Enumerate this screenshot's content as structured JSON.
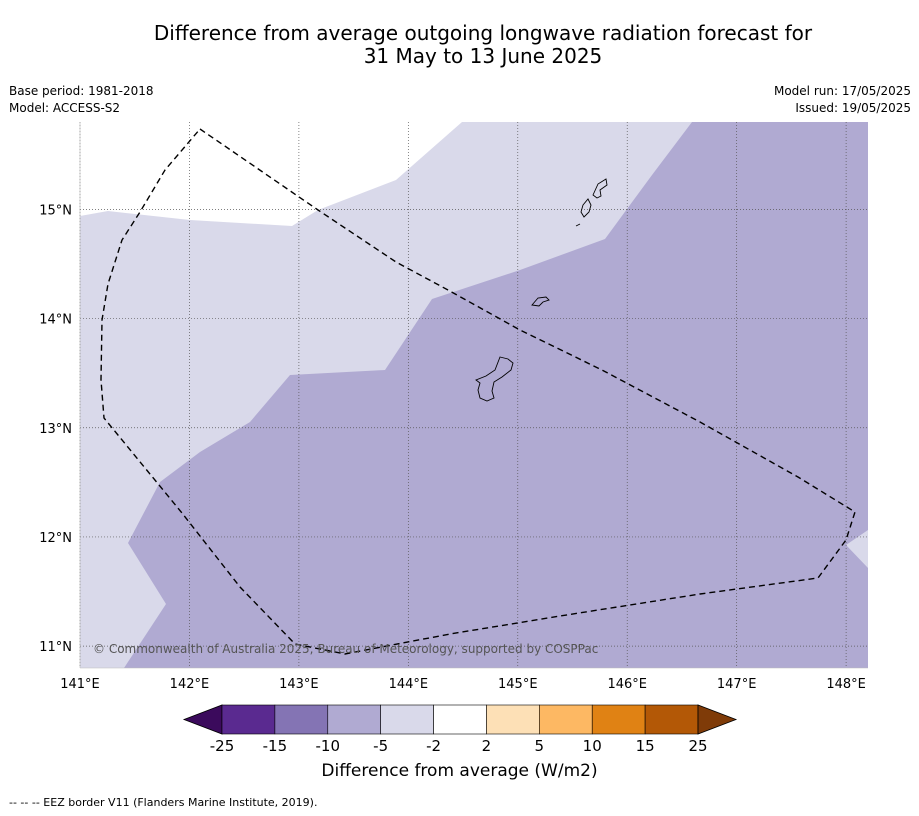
{
  "title_line1": "Difference from average outgoing longwave radiation forecast for",
  "title_line2": "31 May to 13 June 2025",
  "base_period": "Base period: 1981-2018",
  "model": "Model: ACCESS-S2",
  "model_run": "Model run: 17/05/2025",
  "issued": "Issued: 19/05/2025",
  "copyright": "© Commonwealth of Australia 2025, Bureau of Meteorology, supported by COSPPac",
  "footer_legend": "--  --  -- EEZ border V11 (Flanders Marine Institute, 2019).",
  "colorbar_title": "Difference from average (W/m2)",
  "map": {
    "lon_range": [
      141,
      148.2
    ],
    "lat_range": [
      10.8,
      15.8
    ],
    "lon_ticks": [
      "141°E",
      "142°E",
      "143°E",
      "144°E",
      "145°E",
      "146°E",
      "147°E",
      "148°E"
    ],
    "lat_ticks": [
      "11°N",
      "12°N",
      "13°N",
      "14°N",
      "15°N"
    ],
    "lon_tick_values": [
      141,
      142,
      143,
      144,
      145,
      146,
      147,
      148
    ],
    "lat_tick_values": [
      11,
      12,
      13,
      14,
      15
    ],
    "grid": true
  },
  "colorbar": {
    "labels": [
      "-25",
      "-15",
      "-10",
      "-5",
      "-2",
      "2",
      "5",
      "10",
      "15",
      "25"
    ],
    "colors": [
      "#3b0a5c",
      "#5a2a90",
      "#8474b4",
      "#b0aad2",
      "#d9d9ea",
      "#ffffff",
      "#fde0b6",
      "#fdb863",
      "#e08214",
      "#b35806",
      "#7f3b08"
    ]
  },
  "colors": {
    "light_lavender": "#d9d9ea",
    "mid_lavender": "#b0aad2",
    "white": "#ffffff",
    "grid": "#555555"
  }
}
